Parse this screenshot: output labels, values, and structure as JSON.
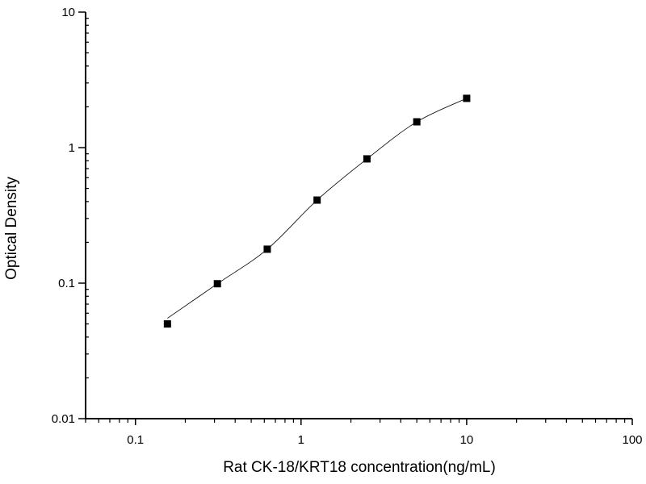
{
  "chart_data": {
    "type": "scatter",
    "title": "",
    "xlabel": "Rat CK-18/KRT18 concentration(ng/mL)",
    "ylabel": "Optical Density",
    "x_scale": "log",
    "y_scale": "log",
    "xlim": [
      0.05,
      100
    ],
    "ylim": [
      0.01,
      10
    ],
    "x_ticks": [
      "0.1",
      "1",
      "10",
      "100"
    ],
    "y_ticks": [
      "0.01",
      "0.1",
      "1",
      "10"
    ],
    "grid": false,
    "legend": "none",
    "marker_color": "#000000",
    "fit_line": true,
    "series": [
      {
        "x": [
          0.156,
          0.3125,
          0.625,
          1.25,
          2.5,
          5,
          10
        ],
        "y": [
          0.05,
          0.099,
          0.178,
          0.41,
          0.826,
          1.55,
          2.31
        ]
      }
    ]
  }
}
